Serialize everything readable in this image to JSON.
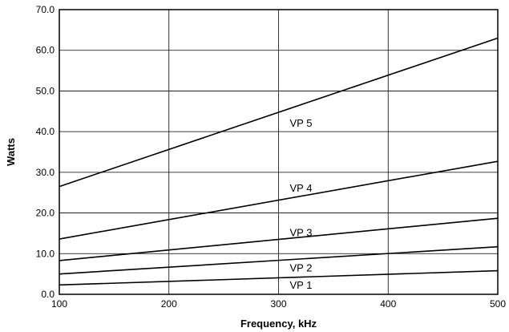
{
  "chart_data": {
    "type": "line",
    "title": "",
    "xlabel": "Frequency, kHz",
    "ylabel": "Watts",
    "xlim": [
      100,
      500
    ],
    "ylim": [
      0,
      70
    ],
    "x_ticks": [
      100,
      200,
      300,
      400,
      500
    ],
    "y_ticks": [
      "0.0",
      "10.0",
      "20.0",
      "30.0",
      "40.0",
      "50.0",
      "60.0",
      "70.0"
    ],
    "grid": true,
    "legend": "none",
    "series": [
      {
        "name": "VP 1",
        "x": [
          100,
          500
        ],
        "y": [
          2.3,
          5.8
        ],
        "label_at": [
          300,
          2.4
        ]
      },
      {
        "name": "VP 2",
        "x": [
          100,
          500
        ],
        "y": [
          5.0,
          11.7
        ],
        "label_at": [
          300,
          6.6
        ]
      },
      {
        "name": "VP 3",
        "x": [
          100,
          500
        ],
        "y": [
          8.3,
          18.7
        ],
        "label_at": [
          300,
          15.3
        ]
      },
      {
        "name": "VP 4",
        "x": [
          100,
          500
        ],
        "y": [
          13.6,
          32.7
        ],
        "label_at": [
          300,
          26.2
        ]
      },
      {
        "name": "VP 5",
        "x": [
          100,
          500
        ],
        "y": [
          26.5,
          63.0
        ],
        "label_at": [
          300,
          42.2
        ]
      }
    ]
  }
}
